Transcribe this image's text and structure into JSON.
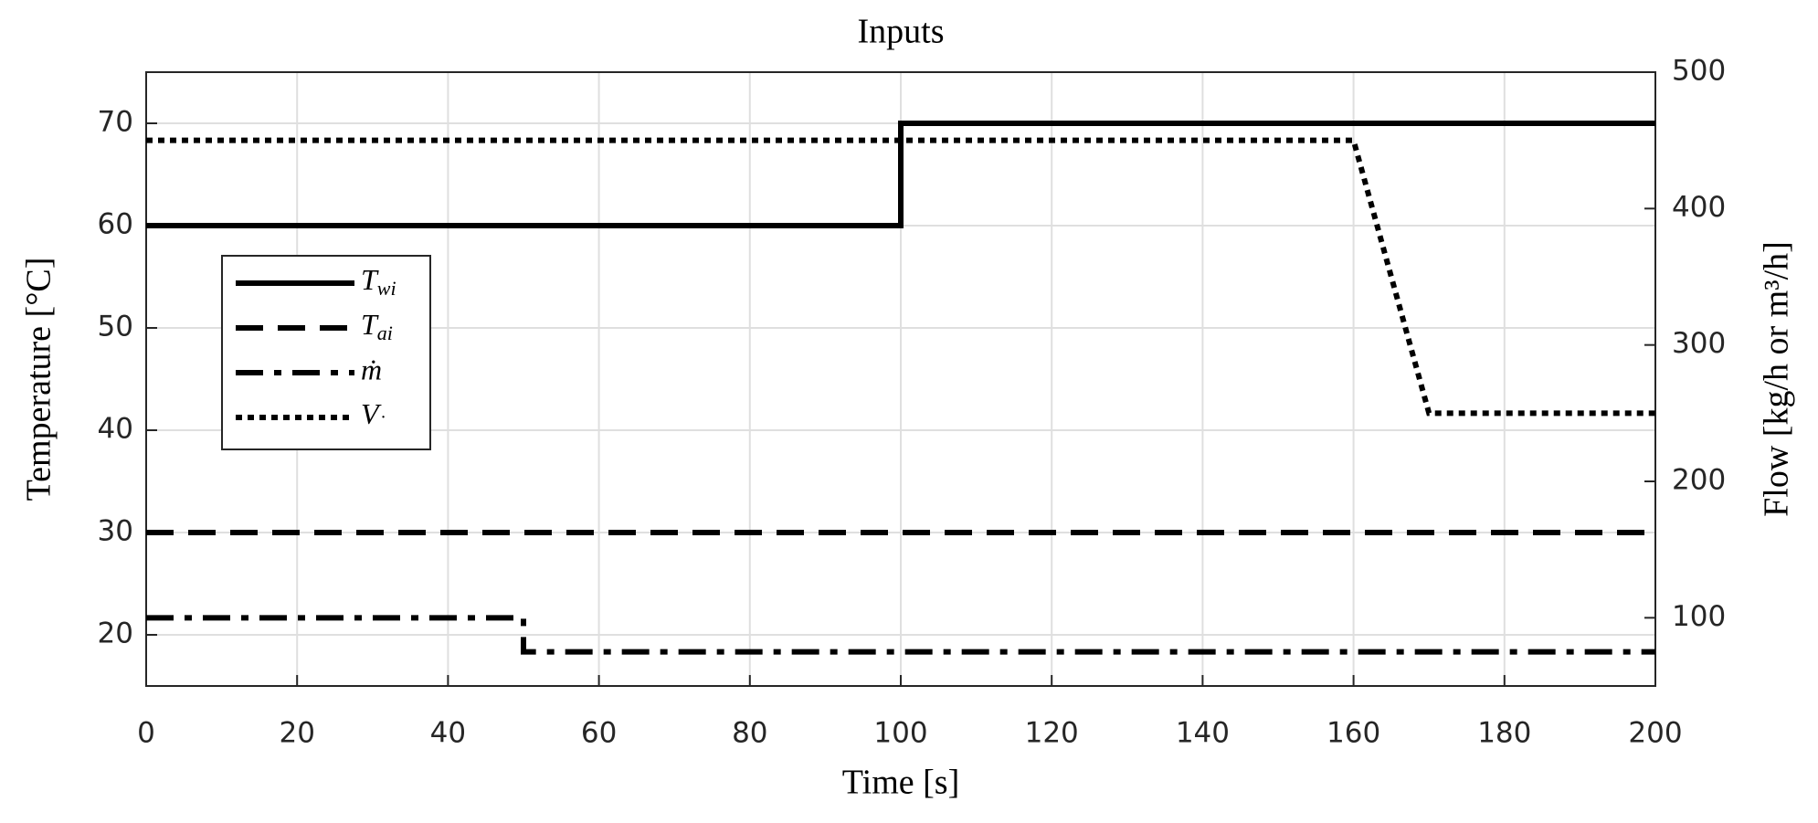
{
  "chart_data": {
    "type": "line",
    "title": "Inputs",
    "x_label": "Time [s]",
    "y_label": "Temperature [°C]",
    "y2_label": "Flow [kg/h or m³/h]",
    "xlim": [
      0,
      200
    ],
    "xticks": [
      0,
      20,
      40,
      60,
      80,
      100,
      120,
      140,
      160,
      180,
      200
    ],
    "ylim": [
      15,
      75
    ],
    "yticks": [
      20,
      30,
      40,
      50,
      60,
      70
    ],
    "y2lim": [
      50,
      500
    ],
    "y2ticks": [
      100,
      200,
      300,
      400,
      500
    ],
    "grid": true,
    "legend": "left",
    "series": [
      {
        "name": "Twi",
        "color": "#000000",
        "line_style": "solid",
        "x": [
          0,
          100,
          100,
          200
        ],
        "values": [
          60,
          60,
          70,
          70
        ]
      },
      {
        "name": "Tai",
        "color": "#000000",
        "line_style": "dashed",
        "x": [
          0,
          200
        ],
        "values": [
          30,
          30
        ]
      },
      {
        "name": "ṁ",
        "color": "#000000",
        "line_style": "dashdot",
        "axis": "y2",
        "x": [
          0,
          50,
          50,
          200
        ],
        "values": [
          100,
          100,
          75,
          75
        ]
      },
      {
        "name": "V̇",
        "color": "#000000",
        "line_style": "dotted",
        "axis": "y2",
        "x": [
          0,
          160,
          170,
          200
        ],
        "values": [
          450,
          450,
          250,
          250
        ]
      }
    ]
  }
}
